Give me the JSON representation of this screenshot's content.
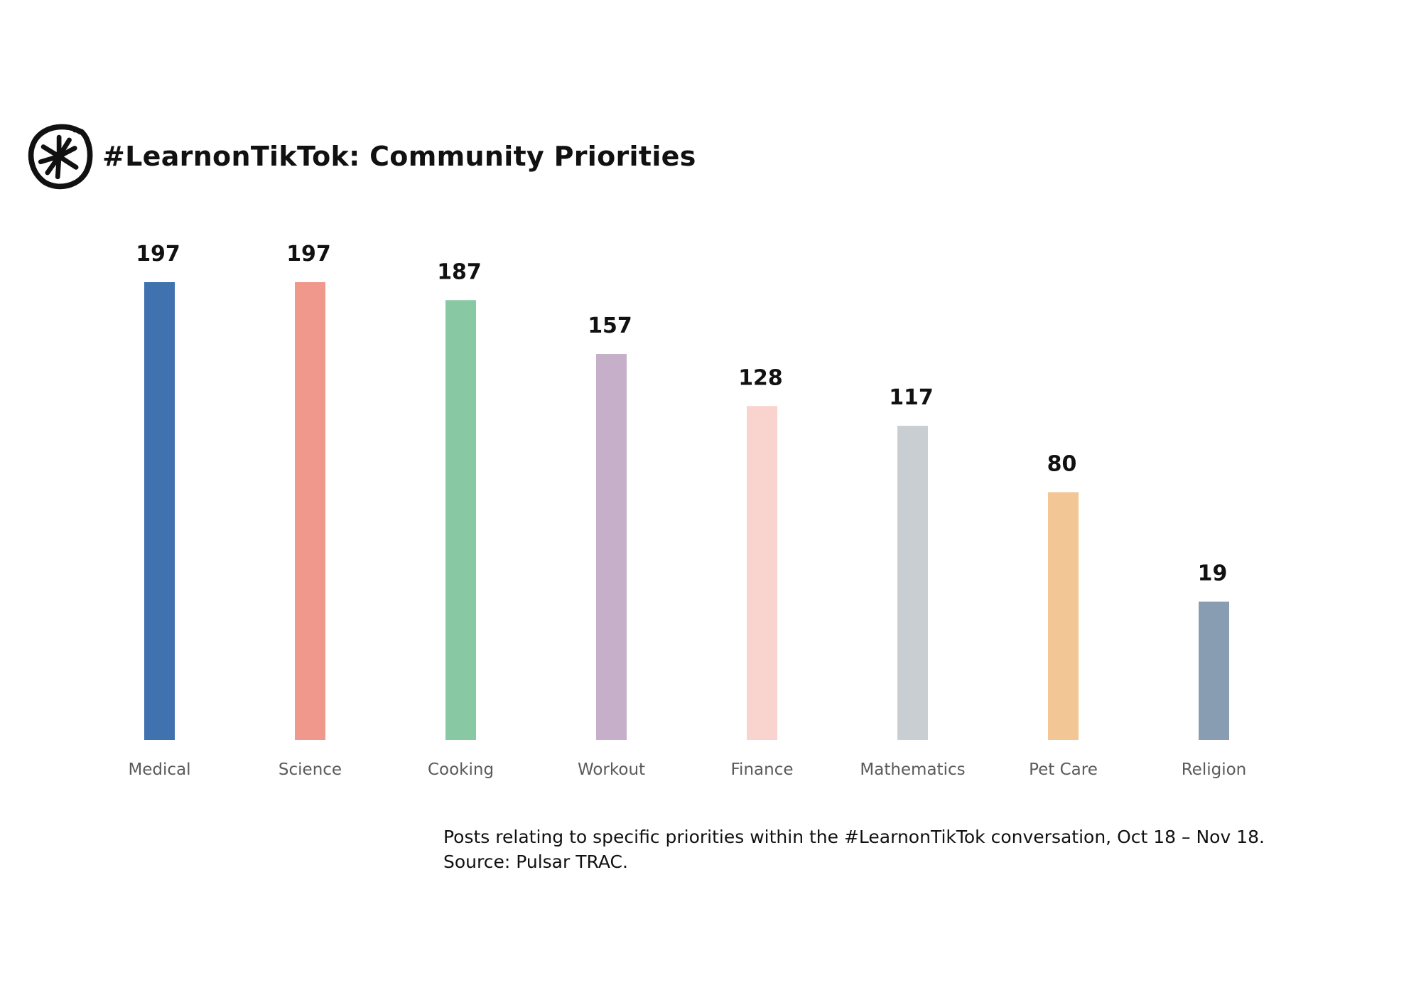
{
  "header": {
    "logo_icon": "asterisk-in-circle-icon",
    "title": "#LearnonTikTok: Community Priorities"
  },
  "chart_data": {
    "type": "bar",
    "title": "#LearnonTikTok: Community Priorities",
    "xlabel": "",
    "ylabel": "",
    "categories": [
      "Medical",
      "Science",
      "Cooking",
      "Workout",
      "Finance",
      "Mathematics",
      "Pet Care",
      "Religion"
    ],
    "values": [
      197,
      197,
      187,
      157,
      128,
      117,
      80,
      19
    ],
    "colors": [
      "#3F72AF",
      "#F1988D",
      "#88C8A2",
      "#C6AFC9",
      "#F9D3CE",
      "#C8CED2",
      "#F3C795",
      "#889DB2"
    ],
    "data_labels": true,
    "axis_visible": false,
    "grid": false,
    "legend": "none"
  },
  "footnote": {
    "line1": "Posts relating to specific priorities within the #LearnonTikTok conversation, Oct 18 – Nov 18.",
    "line2": "Source: Pulsar TRAC."
  }
}
